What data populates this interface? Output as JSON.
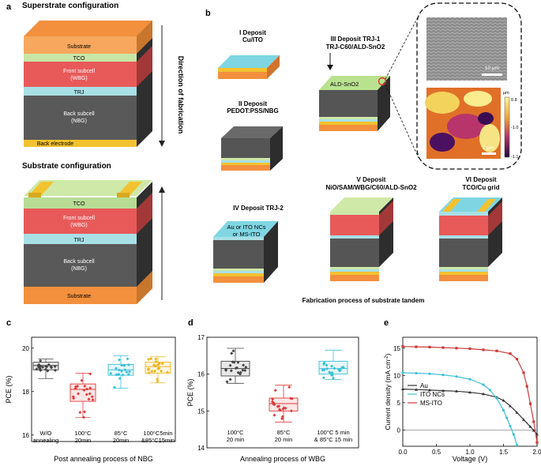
{
  "panel_a": {
    "label": "a",
    "superstrate_title": "Superstrate  configuration",
    "substrate_title": "Substrate configuration",
    "direction_label": "Direction   of   fabrication",
    "super_layers": {
      "substrate": "Substrate",
      "tco": "TCO",
      "front_1": "Front subcell",
      "front_2": "(WBG)",
      "trj": "TRJ",
      "back_1": "Back subcell",
      "back_2": "(NBG)",
      "back_electrode": "Back electrode"
    },
    "sub_layers": {
      "tco": "TCO",
      "front_1": "Front subcell",
      "front_2": "(WBG)",
      "trj": "TRJ",
      "back_1": "Back subcell",
      "back_2": "(NBG)",
      "substrate": "Substrate"
    }
  },
  "panel_b": {
    "label": "b",
    "step1_a": "I  Deposit",
    "step1_b": "Cu/ITO",
    "step2_a": "II  Deposit",
    "step2_b": "PEDOT:PSS/NBG",
    "step3_a": "III  Deposit TRJ-1",
    "step3_b": "TRJ-C60/ALD-SnO2",
    "step3_layer": "ALD-SnO2",
    "step4": "IV  Deposit TRJ-2",
    "step4_box_1": "Au or ITO NCs",
    "step4_box_2": "or MS-ITO",
    "step5_a": "V  Deposit",
    "step5_b": "NiO/SAM/WBG/C60/ALD-SnO2",
    "step6_a": "VI  Deposit",
    "step6_b": "TCO/Cu grid",
    "sem_scale": "10 μm",
    "afm_scale": "1 μm",
    "afm_unit": "μm",
    "afm_tick_top": "0.8",
    "afm_tick_mid": "-1.0",
    "afm_tick_bot": "-1.1",
    "caption": "Fabrication process of substrate tandem"
  },
  "panel_c": {
    "label": "c"
  },
  "panel_d": {
    "label": "d"
  },
  "panel_e": {
    "label": "e"
  },
  "chart_data": [
    {
      "type": "box",
      "panel": "c",
      "ylabel": "PCE (%)",
      "xlabel": "Post annealing process of NBG",
      "ylim": [
        15.7,
        20.5
      ],
      "yticks": [
        16,
        18,
        20
      ],
      "categories": [
        "W/O annealing",
        "100°C 20min",
        "85°C 20min",
        "100°C5min &85°C15min"
      ],
      "colors": [
        "#444444",
        "#e03a3a",
        "#3cc0d6",
        "#f0b418"
      ],
      "boxes": [
        {
          "min": 18.6,
          "q1": 19.0,
          "median": 19.2,
          "q3": 19.35,
          "max": 19.5
        },
        {
          "min": 16.8,
          "q1": 17.55,
          "median": 18.1,
          "q3": 18.35,
          "max": 18.85
        },
        {
          "min": 18.15,
          "q1": 18.75,
          "median": 19.0,
          "q3": 19.25,
          "max": 19.65
        },
        {
          "min": 18.4,
          "q1": 18.85,
          "median": 19.15,
          "q3": 19.35,
          "max": 19.6
        }
      ]
    },
    {
      "type": "box",
      "panel": "d",
      "ylabel": "PCE (%)",
      "xlabel": "Annealing process of WBG",
      "ylim": [
        14,
        17
      ],
      "yticks": [
        14,
        15,
        16,
        17
      ],
      "categories": [
        "100°C 20 min",
        "85°C 20 min",
        "100°C 5 min & 85°C 15 min"
      ],
      "colors": [
        "#444444",
        "#e03a3a",
        "#3cc0d6"
      ],
      "boxes": [
        {
          "min": 15.75,
          "q1": 15.95,
          "median": 16.15,
          "q3": 16.35,
          "max": 16.7
        },
        {
          "min": 14.7,
          "q1": 15.0,
          "median": 15.2,
          "q3": 15.35,
          "max": 15.7
        },
        {
          "min": 15.85,
          "q1": 16.0,
          "median": 16.15,
          "q3": 16.35,
          "max": 16.65
        }
      ]
    },
    {
      "type": "line",
      "panel": "e",
      "xlabel": "Voltage (V)",
      "ylabel": "Current density (mA cm-2)",
      "xlim": [
        0,
        2.0
      ],
      "ylim": [
        -3,
        17
      ],
      "xticks": [
        0.0,
        0.5,
        1.0,
        1.5,
        2.0
      ],
      "yticks": [
        0,
        5,
        10,
        15
      ],
      "legend_position": "left",
      "series": [
        {
          "name": "Au",
          "color": "#333333",
          "x": [
            0,
            0.2,
            0.4,
            0.6,
            0.8,
            1.0,
            1.2,
            1.4,
            1.5,
            1.6,
            1.7,
            1.8,
            1.9,
            1.95,
            2.0
          ],
          "y": [
            7.5,
            7.4,
            7.3,
            7.2,
            7.1,
            6.9,
            6.6,
            6.0,
            5.4,
            4.4,
            3.2,
            1.9,
            0.6,
            -0.1,
            -0.8
          ]
        },
        {
          "name": "ITO NCs",
          "color": "#3cc0d6",
          "x": [
            0,
            0.2,
            0.4,
            0.6,
            0.8,
            1.0,
            1.2,
            1.3,
            1.4,
            1.5,
            1.55,
            1.6,
            1.65,
            1.7
          ],
          "y": [
            10.5,
            10.4,
            10.3,
            10.1,
            9.8,
            9.3,
            8.3,
            7.3,
            5.8,
            3.6,
            2.2,
            0.7,
            -0.8,
            -2.8
          ]
        },
        {
          "name": "MS-ITO",
          "color": "#cc3b3b",
          "x": [
            0,
            0.2,
            0.4,
            0.6,
            0.8,
            1.0,
            1.2,
            1.4,
            1.6,
            1.7,
            1.8,
            1.85,
            1.9,
            1.95,
            2.0
          ],
          "y": [
            15.3,
            15.25,
            15.2,
            15.1,
            15.0,
            14.9,
            14.7,
            14.5,
            14.0,
            13.0,
            10.5,
            8.0,
            4.8,
            1.5,
            -2.3
          ]
        }
      ]
    }
  ]
}
